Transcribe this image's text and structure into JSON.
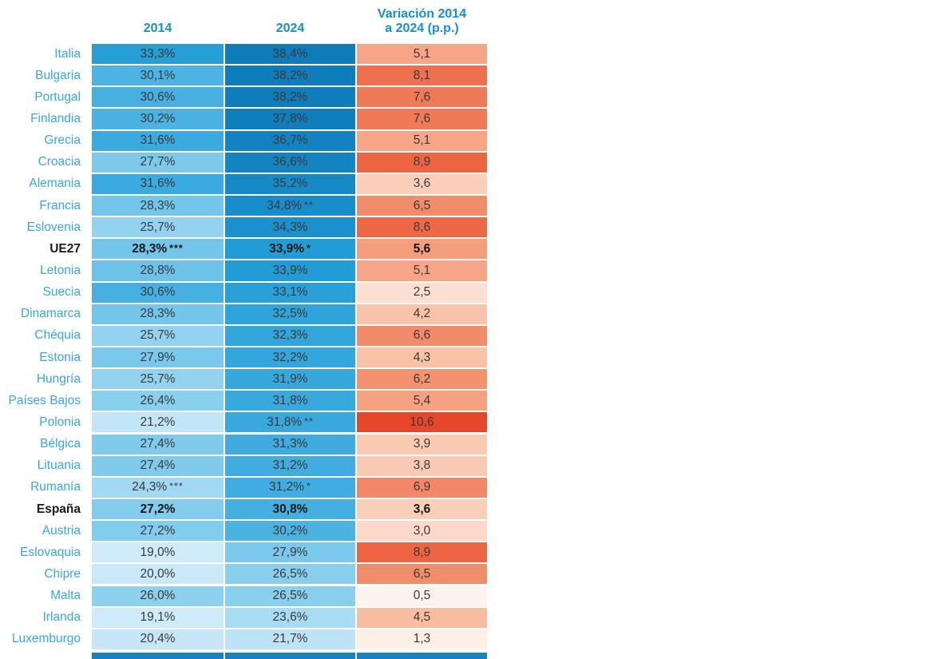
{
  "page": {
    "background": "#ffffff"
  },
  "table": {
    "header": {
      "c1": "2014",
      "c2": "2024",
      "c3_line1": "Variación 2014",
      "c3_line2": "a 2024 (p.p.)",
      "text_color": "#1191cf"
    },
    "label_color": "#35a8e1",
    "bold_row_color": "#1b1b19",
    "cutoff_bar_color": "#1583c2",
    "rows": [
      {
        "label": "Italia",
        "bold": false,
        "c2014": {
          "t": "33,3%",
          "m": "",
          "bg": "#269fd7"
        },
        "c2024": {
          "t": "38,4%",
          "m": "",
          "bg": "#0e7cb8"
        },
        "cvar": {
          "t": "5,1",
          "bg": "#f6a587"
        }
      },
      {
        "label": "Bulgaria",
        "bold": false,
        "c2014": {
          "t": "30,1%",
          "m": "",
          "bg": "#4db3e3"
        },
        "c2024": {
          "t": "38,2%",
          "m": "",
          "bg": "#0f7db9"
        },
        "cvar": {
          "t": "8,1",
          "bg": "#ef7050"
        }
      },
      {
        "label": "Portugal",
        "bold": false,
        "c2014": {
          "t": "30,6%",
          "m": "",
          "bg": "#47b0e1"
        },
        "c2024": {
          "t": "38,2%",
          "m": "",
          "bg": "#0f7db9"
        },
        "cvar": {
          "t": "7,6",
          "bg": "#f07957"
        }
      },
      {
        "label": "Finlandia",
        "bold": false,
        "c2014": {
          "t": "30,2%",
          "m": "",
          "bg": "#4cb2e2"
        },
        "c2024": {
          "t": "37,8%",
          "m": "",
          "bg": "#107ebb"
        },
        "cvar": {
          "t": "7,6",
          "bg": "#f07957"
        }
      },
      {
        "label": "Grecia",
        "bold": false,
        "c2014": {
          "t": "31,6%",
          "m": "",
          "bg": "#3baade"
        },
        "c2024": {
          "t": "36,7%",
          "m": "",
          "bg": "#1283c0"
        },
        "cvar": {
          "t": "5,1",
          "bg": "#f6a587"
        }
      },
      {
        "label": "Croacia",
        "bold": false,
        "c2014": {
          "t": "27,7%",
          "m": "",
          "bg": "#7cc9ec"
        },
        "c2024": {
          "t": "36,6%",
          "m": "",
          "bg": "#1384c1"
        },
        "cvar": {
          "t": "8,9",
          "bg": "#ed6443"
        }
      },
      {
        "label": "Alemania",
        "bold": false,
        "c2014": {
          "t": "31,6%",
          "m": "",
          "bg": "#3baade"
        },
        "c2024": {
          "t": "35,2%",
          "m": "",
          "bg": "#168ac7"
        },
        "cvar": {
          "t": "3,6",
          "bg": "#facfba"
        }
      },
      {
        "label": "Francia",
        "bold": false,
        "c2014": {
          "t": "28,3%",
          "m": "",
          "bg": "#74c5ea"
        },
        "c2024": {
          "t": "34,8%",
          "m": "**",
          "bg": "#188dca"
        },
        "cvar": {
          "t": "6,5",
          "bg": "#f28d6c"
        }
      },
      {
        "label": "Eslovenia",
        "bold": false,
        "c2014": {
          "t": "25,7%",
          "m": "",
          "bg": "#93d3f0"
        },
        "c2024": {
          "t": "34,3%",
          "m": "",
          "bg": "#1a90cd"
        },
        "cvar": {
          "t": "8,6",
          "bg": "#ee6846"
        }
      },
      {
        "label": "UE27",
        "bold": true,
        "c2014": {
          "t": "28,3%",
          "m": "***",
          "bg": "#74c5ea"
        },
        "c2024": {
          "t": "33,9%",
          "m": "*",
          "bg": "#219cd5"
        },
        "cvar": {
          "t": "5,6",
          "bg": "#f59e7e"
        }
      },
      {
        "label": "Letonia",
        "bold": false,
        "c2014": {
          "t": "28,8%",
          "m": "",
          "bg": "#6dc2e9"
        },
        "c2024": {
          "t": "33,9%",
          "m": "",
          "bg": "#219cd5"
        },
        "cvar": {
          "t": "5,1",
          "bg": "#f6a587"
        }
      },
      {
        "label": "Suecia",
        "bold": false,
        "c2014": {
          "t": "30,6%",
          "m": "",
          "bg": "#47b0e1"
        },
        "c2024": {
          "t": "33,1%",
          "m": "",
          "bg": "#29a0d8"
        },
        "cvar": {
          "t": "2,5",
          "bg": "#fcdfd2"
        }
      },
      {
        "label": "Dinamarca",
        "bold": false,
        "c2014": {
          "t": "28,3%",
          "m": "",
          "bg": "#74c5ea"
        },
        "c2024": {
          "t": "32,5%",
          "m": "",
          "bg": "#2fa4da"
        },
        "cvar": {
          "t": "4,2",
          "bg": "#f8c3a9"
        }
      },
      {
        "label": "Chéquia",
        "bold": false,
        "c2014": {
          "t": "25,7%",
          "m": "",
          "bg": "#93d3f0"
        },
        "c2024": {
          "t": "32,3%",
          "m": "",
          "bg": "#32a5db"
        },
        "cvar": {
          "t": "6,6",
          "bg": "#f28b6a"
        }
      },
      {
        "label": "Estonia",
        "bold": false,
        "c2014": {
          "t": "27,9%",
          "m": "",
          "bg": "#7ac8eb"
        },
        "c2024": {
          "t": "32,2%",
          "m": "",
          "bg": "#33a6db"
        },
        "cvar": {
          "t": "4,3",
          "bg": "#f8c2a6"
        }
      },
      {
        "label": "Hungría",
        "bold": false,
        "c2014": {
          "t": "25,7%",
          "m": "",
          "bg": "#93d3f0"
        },
        "c2024": {
          "t": "31,9%",
          "m": "",
          "bg": "#37a8dc"
        },
        "cvar": {
          "t": "6,2",
          "bg": "#f39171"
        }
      },
      {
        "label": "Países Bajos",
        "bold": false,
        "c2014": {
          "t": "26,4%",
          "m": "",
          "bg": "#89cfee"
        },
        "c2024": {
          "t": "31,8%",
          "m": "",
          "bg": "#39a9dd"
        },
        "cvar": {
          "t": "5,4",
          "bg": "#f5a182"
        }
      },
      {
        "label": "Polonia",
        "bold": false,
        "c2014": {
          "t": "21,2%",
          "m": "",
          "bg": "#c2e5f8"
        },
        "c2024": {
          "t": "31,8%",
          "m": "**",
          "bg": "#39a9dd"
        },
        "cvar": {
          "t": "10,6",
          "bg": "#e8462b"
        }
      },
      {
        "label": "Bélgica",
        "bold": false,
        "c2014": {
          "t": "27,4%",
          "m": "",
          "bg": "#80cbec"
        },
        "c2024": {
          "t": "31,3%",
          "m": "",
          "bg": "#3fabdf"
        },
        "cvar": {
          "t": "3,9",
          "bg": "#f9c9b1"
        }
      },
      {
        "label": "Lituania",
        "bold": false,
        "c2014": {
          "t": "27,4%",
          "m": "",
          "bg": "#80cbec"
        },
        "c2024": {
          "t": "31,2%",
          "m": "",
          "bg": "#40ace0"
        },
        "cvar": {
          "t": "3,8",
          "bg": "#f9cab3"
        }
      },
      {
        "label": "Rumanía",
        "bold": false,
        "c2014": {
          "t": "24,3%",
          "m": "***",
          "bg": "#a1d9f3"
        },
        "c2024": {
          "t": "31,2%",
          "m": "*",
          "bg": "#40ace0"
        },
        "cvar": {
          "t": "6,9",
          "bg": "#f18766"
        }
      },
      {
        "label": "España",
        "bold": true,
        "c2014": {
          "t": "27,2%",
          "m": "",
          "bg": "#82cced"
        },
        "c2024": {
          "t": "30,8%",
          "m": "",
          "bg": "#45afe0"
        },
        "cvar": {
          "t": "3,6",
          "bg": "#facfba"
        }
      },
      {
        "label": "Austria",
        "bold": false,
        "c2014": {
          "t": "27,2%",
          "m": "",
          "bg": "#82cced"
        },
        "c2024": {
          "t": "30,2%",
          "m": "",
          "bg": "#4cb2e2"
        },
        "cvar": {
          "t": "3,0",
          "bg": "#fbd8c8"
        }
      },
      {
        "label": "Eslovaquia",
        "bold": false,
        "c2014": {
          "t": "19,0%",
          "m": "",
          "bg": "#cfebfa"
        },
        "c2024": {
          "t": "27,9%",
          "m": "",
          "bg": "#7ac8eb"
        },
        "cvar": {
          "t": "8,9",
          "bg": "#ed6443"
        }
      },
      {
        "label": "Chipre",
        "bold": false,
        "c2014": {
          "t": "20,0%",
          "m": "",
          "bg": "#c9e8f9"
        },
        "c2024": {
          "t": "26,5%",
          "m": "",
          "bg": "#88cfee"
        },
        "cvar": {
          "t": "6,5",
          "bg": "#f28d6c"
        }
      },
      {
        "label": "Malta",
        "bold": false,
        "c2014": {
          "t": "26,0%",
          "m": "",
          "bg": "#8dd1ef"
        },
        "c2024": {
          "t": "26,5%",
          "m": "",
          "bg": "#88cfee"
        },
        "cvar": {
          "t": "0,5",
          "bg": "#fdf3ed"
        }
      },
      {
        "label": "Irlanda",
        "bold": false,
        "c2014": {
          "t": "19,1%",
          "m": "",
          "bg": "#cfebfa"
        },
        "c2024": {
          "t": "23,6%",
          "m": "",
          "bg": "#a8dcf4"
        },
        "cvar": {
          "t": "4,5",
          "bg": "#f8bda1"
        }
      },
      {
        "label": "Luxemburgo",
        "bold": false,
        "c2014": {
          "t": "20,4%",
          "m": "",
          "bg": "#c7e7f9"
        },
        "c2024": {
          "t": "21,7%",
          "m": "",
          "bg": "#bde3f7"
        },
        "cvar": {
          "t": "1,3",
          "bg": "#fdefe6"
        }
      }
    ]
  },
  "chart_data": {
    "type": "table",
    "subtype": "heatmap",
    "columns": [
      "2014",
      "2024",
      "Variación 2014 a 2024 (p.p.)"
    ],
    "categories": [
      "Italia",
      "Bulgaria",
      "Portugal",
      "Finlandia",
      "Grecia",
      "Croacia",
      "Alemania",
      "Francia",
      "Eslovenia",
      "UE27",
      "Letonia",
      "Suecia",
      "Dinamarca",
      "Chéquia",
      "Estonia",
      "Hungría",
      "Países Bajos",
      "Polonia",
      "Bélgica",
      "Lituania",
      "Rumanía",
      "España",
      "Austria",
      "Eslovaquia",
      "Chipre",
      "Malta",
      "Irlanda",
      "Luxemburgo"
    ],
    "series": [
      {
        "name": "2014",
        "values": [
          33.3,
          30.1,
          30.6,
          30.2,
          31.6,
          27.7,
          31.6,
          28.3,
          25.7,
          28.3,
          28.8,
          30.6,
          28.3,
          25.7,
          27.9,
          25.7,
          26.4,
          21.2,
          27.4,
          27.4,
          24.3,
          27.2,
          27.2,
          19.0,
          20.0,
          26.0,
          19.1,
          20.4
        ]
      },
      {
        "name": "2024",
        "values": [
          38.4,
          38.2,
          38.2,
          37.8,
          36.7,
          36.6,
          35.2,
          34.8,
          34.3,
          33.9,
          33.9,
          33.1,
          32.5,
          32.3,
          32.2,
          31.9,
          31.8,
          31.8,
          31.3,
          31.2,
          31.2,
          30.8,
          30.2,
          27.9,
          26.5,
          26.5,
          23.6,
          21.7
        ]
      },
      {
        "name": "Variación 2014 a 2024 (p.p.)",
        "values": [
          5.1,
          8.1,
          7.6,
          7.6,
          5.1,
          8.9,
          3.6,
          6.5,
          8.6,
          5.6,
          5.1,
          2.5,
          4.2,
          6.6,
          4.3,
          6.2,
          5.4,
          10.6,
          3.9,
          3.8,
          6.9,
          3.6,
          3.0,
          8.9,
          6.5,
          0.5,
          4.5,
          1.3
        ]
      }
    ],
    "footnote_marks": {
      "Francia": {
        "2024": "**"
      },
      "UE27": {
        "2014": "***",
        "2024": "*"
      },
      "Polonia": {
        "2024": "**"
      },
      "Rumanía": {
        "2014": "***",
        "2024": "*"
      }
    },
    "bold_rows": [
      "UE27",
      "España"
    ],
    "heatmap_palette": {
      "blue_low": "#cfebfa",
      "blue_high": "#0e7cb8",
      "red_low": "#fdf3ed",
      "red_high": "#e8462b"
    },
    "number_format": "comma-decimal",
    "grid": false,
    "legend": "none"
  }
}
